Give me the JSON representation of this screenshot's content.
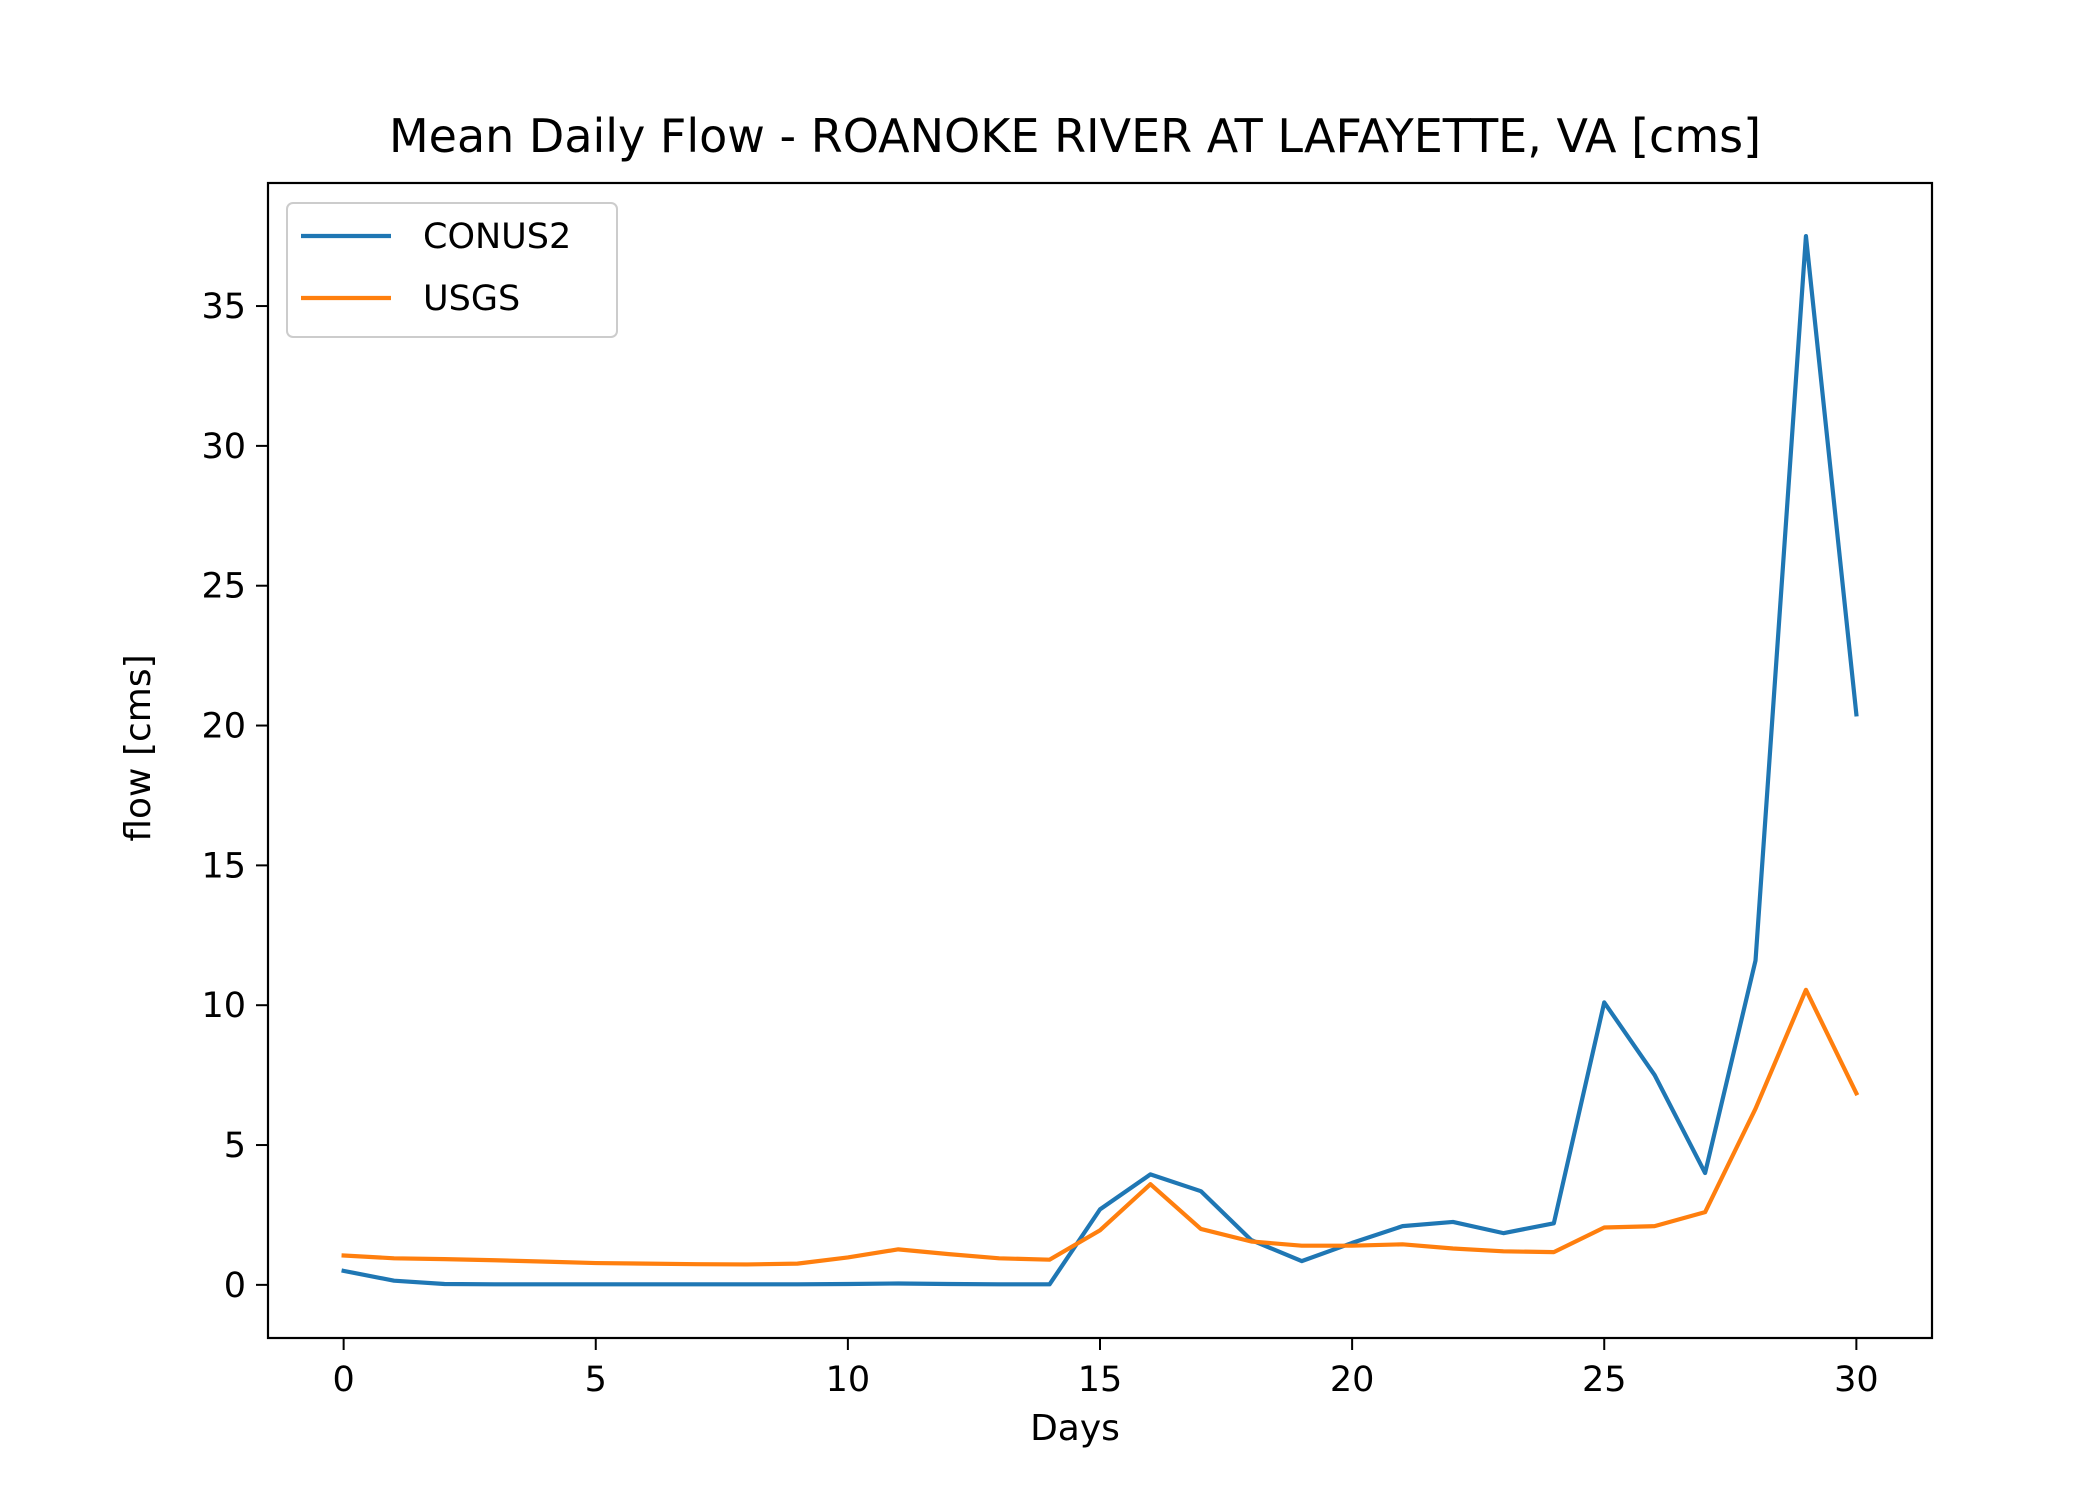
{
  "chart_data": {
    "type": "line",
    "title": "Mean Daily Flow - ROANOKE RIVER AT LAFAYETTE, VA [cms]",
    "xlabel": "Days",
    "ylabel": "flow [cms]",
    "xlim": [
      -1.5,
      31.5
    ],
    "ylim": [
      -1.9,
      39.4
    ],
    "x_ticks": [
      0,
      5,
      10,
      15,
      20,
      25,
      30
    ],
    "y_ticks": [
      0,
      5,
      10,
      15,
      20,
      25,
      30,
      35
    ],
    "grid": false,
    "legend_position": "top-left",
    "x": [
      0,
      1,
      2,
      3,
      4,
      5,
      6,
      7,
      8,
      9,
      10,
      11,
      12,
      13,
      14,
      15,
      16,
      17,
      18,
      19,
      20,
      21,
      22,
      23,
      24,
      25,
      26,
      27,
      28,
      29,
      30
    ],
    "series": [
      {
        "name": "CONUS2",
        "color": "#1f77b4",
        "values": [
          0.5,
          0.15,
          0.03,
          0.02,
          0.02,
          0.02,
          0.02,
          0.02,
          0.02,
          0.02,
          0.03,
          0.05,
          0.03,
          0.02,
          0.02,
          2.7,
          3.95,
          3.35,
          1.6,
          0.85,
          1.5,
          2.1,
          2.25,
          1.85,
          2.2,
          10.1,
          7.5,
          4.0,
          11.6,
          37.5,
          20.4
        ]
      },
      {
        "name": "USGS",
        "color": "#ff7f0e",
        "values": [
          1.05,
          0.95,
          0.92,
          0.88,
          0.83,
          0.78,
          0.76,
          0.74,
          0.73,
          0.76,
          0.98,
          1.27,
          1.1,
          0.95,
          0.9,
          1.95,
          3.6,
          2.0,
          1.55,
          1.4,
          1.4,
          1.45,
          1.3,
          1.2,
          1.17,
          2.05,
          2.1,
          2.6,
          6.3,
          10.55,
          6.85
        ]
      }
    ]
  }
}
